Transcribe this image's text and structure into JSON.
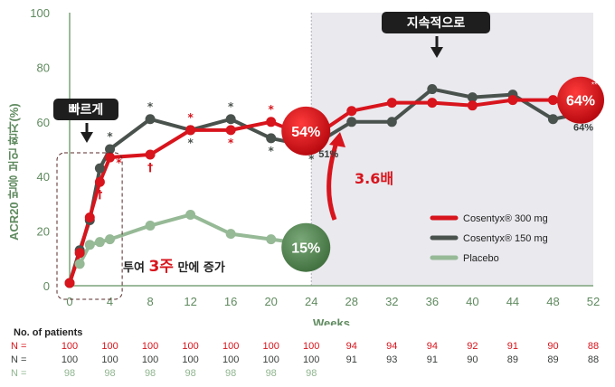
{
  "chart_data": {
    "type": "line",
    "ylabel": "ACR20 반응 보인 환자(%)",
    "xlabel": "Weeks",
    "ylim": [
      0,
      100
    ],
    "xlim": [
      0,
      52
    ],
    "yticks": [
      0,
      20,
      40,
      60,
      80,
      100
    ],
    "xticks": [
      0,
      4,
      8,
      12,
      16,
      20,
      24,
      28,
      32,
      36,
      40,
      44,
      48,
      52
    ],
    "legend_position": "center-right",
    "series": [
      {
        "name": "Cosentyx® 300 mg",
        "color": "#d8141c",
        "x": [
          0,
          1,
          2,
          3,
          4,
          8,
          12,
          16,
          20,
          24,
          28,
          32,
          36,
          40,
          44,
          48,
          52
        ],
        "y": [
          1,
          12,
          25,
          38,
          47,
          48,
          57,
          57,
          60,
          54,
          64,
          67,
          67,
          66,
          68,
          68,
          64
        ]
      },
      {
        "name": "Cosentyx® 150 mg",
        "color": "#4a524d",
        "x": [
          0,
          1,
          2,
          3,
          4,
          8,
          12,
          16,
          20,
          24,
          28,
          32,
          36,
          40,
          44,
          48,
          52
        ],
        "y": [
          1,
          13,
          24,
          43,
          50,
          61,
          57,
          61,
          54,
          51,
          60,
          60,
          72,
          69,
          70,
          61,
          64
        ]
      },
      {
        "name": "Placebo",
        "color": "#96b996",
        "x": [
          1,
          2,
          3,
          4,
          8,
          12,
          16,
          20,
          24
        ],
        "y": [
          8,
          15,
          16,
          17,
          22,
          26,
          19,
          17,
          15
        ]
      }
    ],
    "annotations": {
      "early_label": "빠르게",
      "sustained_label": "지속적으로",
      "increase_text_before": "투여 ",
      "increase_highlight": "3주",
      "increase_text_after": " 만에 증가",
      "fold_label": "3.6배",
      "bubble_red_24": "54%",
      "bubble_red_52": "64%",
      "bubble_placebo_24": "15%",
      "label_150_at_24": "51%",
      "label_150_at_52": "64%",
      "sig_star": "*",
      "sig_dagger": "†",
      "sig_triple": "***"
    },
    "significance_marks": [
      {
        "x": 3,
        "y": 38,
        "glyph": "†",
        "color": "#d8141c",
        "pos": "below"
      },
      {
        "x": 4,
        "y": 47,
        "glyph": "*",
        "color": "#d8141c",
        "pos": "right"
      },
      {
        "x": 4,
        "y": 50,
        "glyph": "*",
        "color": "#4a524d",
        "pos": "above"
      },
      {
        "x": 8,
        "y": 48,
        "glyph": "†",
        "color": "#d8141c",
        "pos": "below"
      },
      {
        "x": 8,
        "y": 61,
        "glyph": "*",
        "color": "#4a524d",
        "pos": "above"
      },
      {
        "x": 12,
        "y": 57,
        "glyph": "*",
        "color": "#d8141c",
        "pos": "above"
      },
      {
        "x": 12,
        "y": 57,
        "glyph": "*",
        "color": "#4a524d",
        "pos": "below"
      },
      {
        "x": 16,
        "y": 61,
        "glyph": "*",
        "color": "#4a524d",
        "pos": "above"
      },
      {
        "x": 16,
        "y": 57,
        "glyph": "*",
        "color": "#d8141c",
        "pos": "below"
      },
      {
        "x": 20,
        "y": 60,
        "glyph": "*",
        "color": "#d8141c",
        "pos": "above"
      },
      {
        "x": 20,
        "y": 54,
        "glyph": "*",
        "color": "#4a524d",
        "pos": "below"
      },
      {
        "x": 24,
        "y": 54,
        "glyph": "*",
        "color": "#d8141c",
        "pos": "above"
      },
      {
        "x": 24,
        "y": 51,
        "glyph": "*",
        "color": "#4a524d",
        "pos": "below"
      }
    ],
    "patients": {
      "title": "No. of patients",
      "row_label": "N =",
      "rows": [
        {
          "series": "Cosentyx® 300 mg",
          "x": [
            0,
            4,
            8,
            12,
            16,
            20,
            24,
            28,
            32,
            36,
            40,
            44,
            48,
            52
          ],
          "values": [
            "100",
            "100",
            "100",
            "100",
            "100",
            "100",
            "100",
            "94",
            "94",
            "94",
            "92",
            "91",
            "90",
            "88"
          ]
        },
        {
          "series": "Cosentyx® 150 mg",
          "x": [
            0,
            4,
            8,
            12,
            16,
            20,
            24,
            28,
            32,
            36,
            40,
            44,
            48,
            52
          ],
          "values": [
            "100",
            "100",
            "100",
            "100",
            "100",
            "100",
            "100",
            "91",
            "93",
            "91",
            "90",
            "89",
            "89",
            "88"
          ]
        },
        {
          "series": "Placebo",
          "x": [
            0,
            4,
            8,
            12,
            16,
            20,
            24
          ],
          "values": [
            "98",
            "98",
            "98",
            "98",
            "98",
            "98",
            "98"
          ]
        }
      ]
    }
  }
}
